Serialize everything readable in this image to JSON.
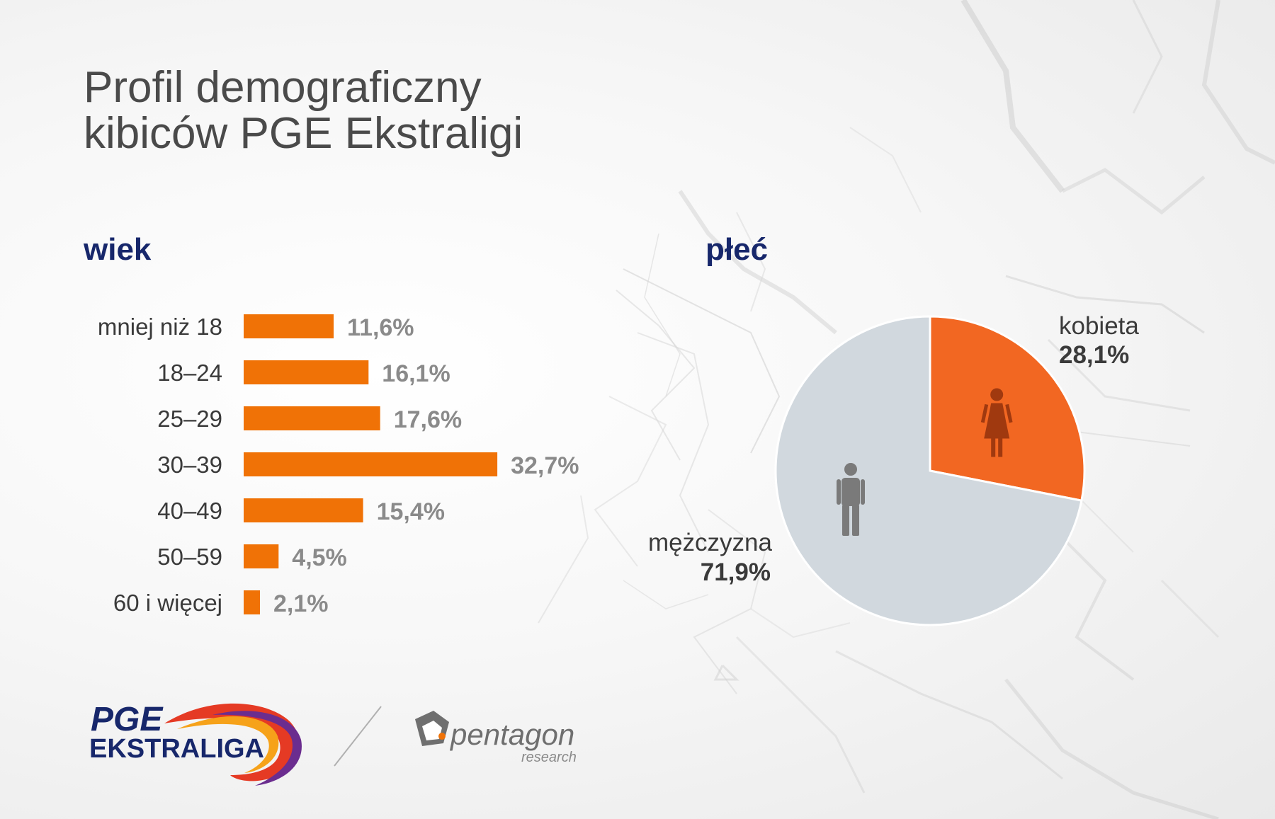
{
  "title": {
    "line1": "Profil demograficzny",
    "line2": "kibiców PGE Ekstraligi"
  },
  "sections": {
    "age": "wiek",
    "gender": "płeć"
  },
  "colors": {
    "bar": "#f07206",
    "female": "#f26722",
    "male": "#d1d8de",
    "female_icon": "#a0390f",
    "male_icon": "#7a7a7a",
    "heading": "#17276b"
  },
  "chart_data": [
    {
      "type": "bar",
      "orientation": "horizontal",
      "title": "wiek",
      "categories": [
        "mniej niż 18",
        "18–24",
        "25–29",
        "30–39",
        "40–49",
        "50–59",
        "60 i więcej"
      ],
      "values": [
        11.6,
        16.1,
        17.6,
        32.7,
        15.4,
        4.5,
        2.1
      ],
      "value_labels": [
        "11,6%",
        "16,1%",
        "17,6%",
        "32,7%",
        "15,4%",
        "4,5%",
        "2,1%"
      ],
      "unit": "%",
      "grid": false
    },
    {
      "type": "pie",
      "title": "płeć",
      "slices": [
        {
          "name": "kobieta",
          "value": 28.1,
          "label": "28,1%",
          "icon": "woman-icon"
        },
        {
          "name": "mężczyzna",
          "value": 71.9,
          "label": "71,9%",
          "icon": "man-icon"
        }
      ]
    }
  ],
  "logos": {
    "pge_line1": "PGE",
    "pge_line2": "EKSTRALIGA",
    "pentagon_name": "pentagon",
    "pentagon_sub": "research"
  }
}
